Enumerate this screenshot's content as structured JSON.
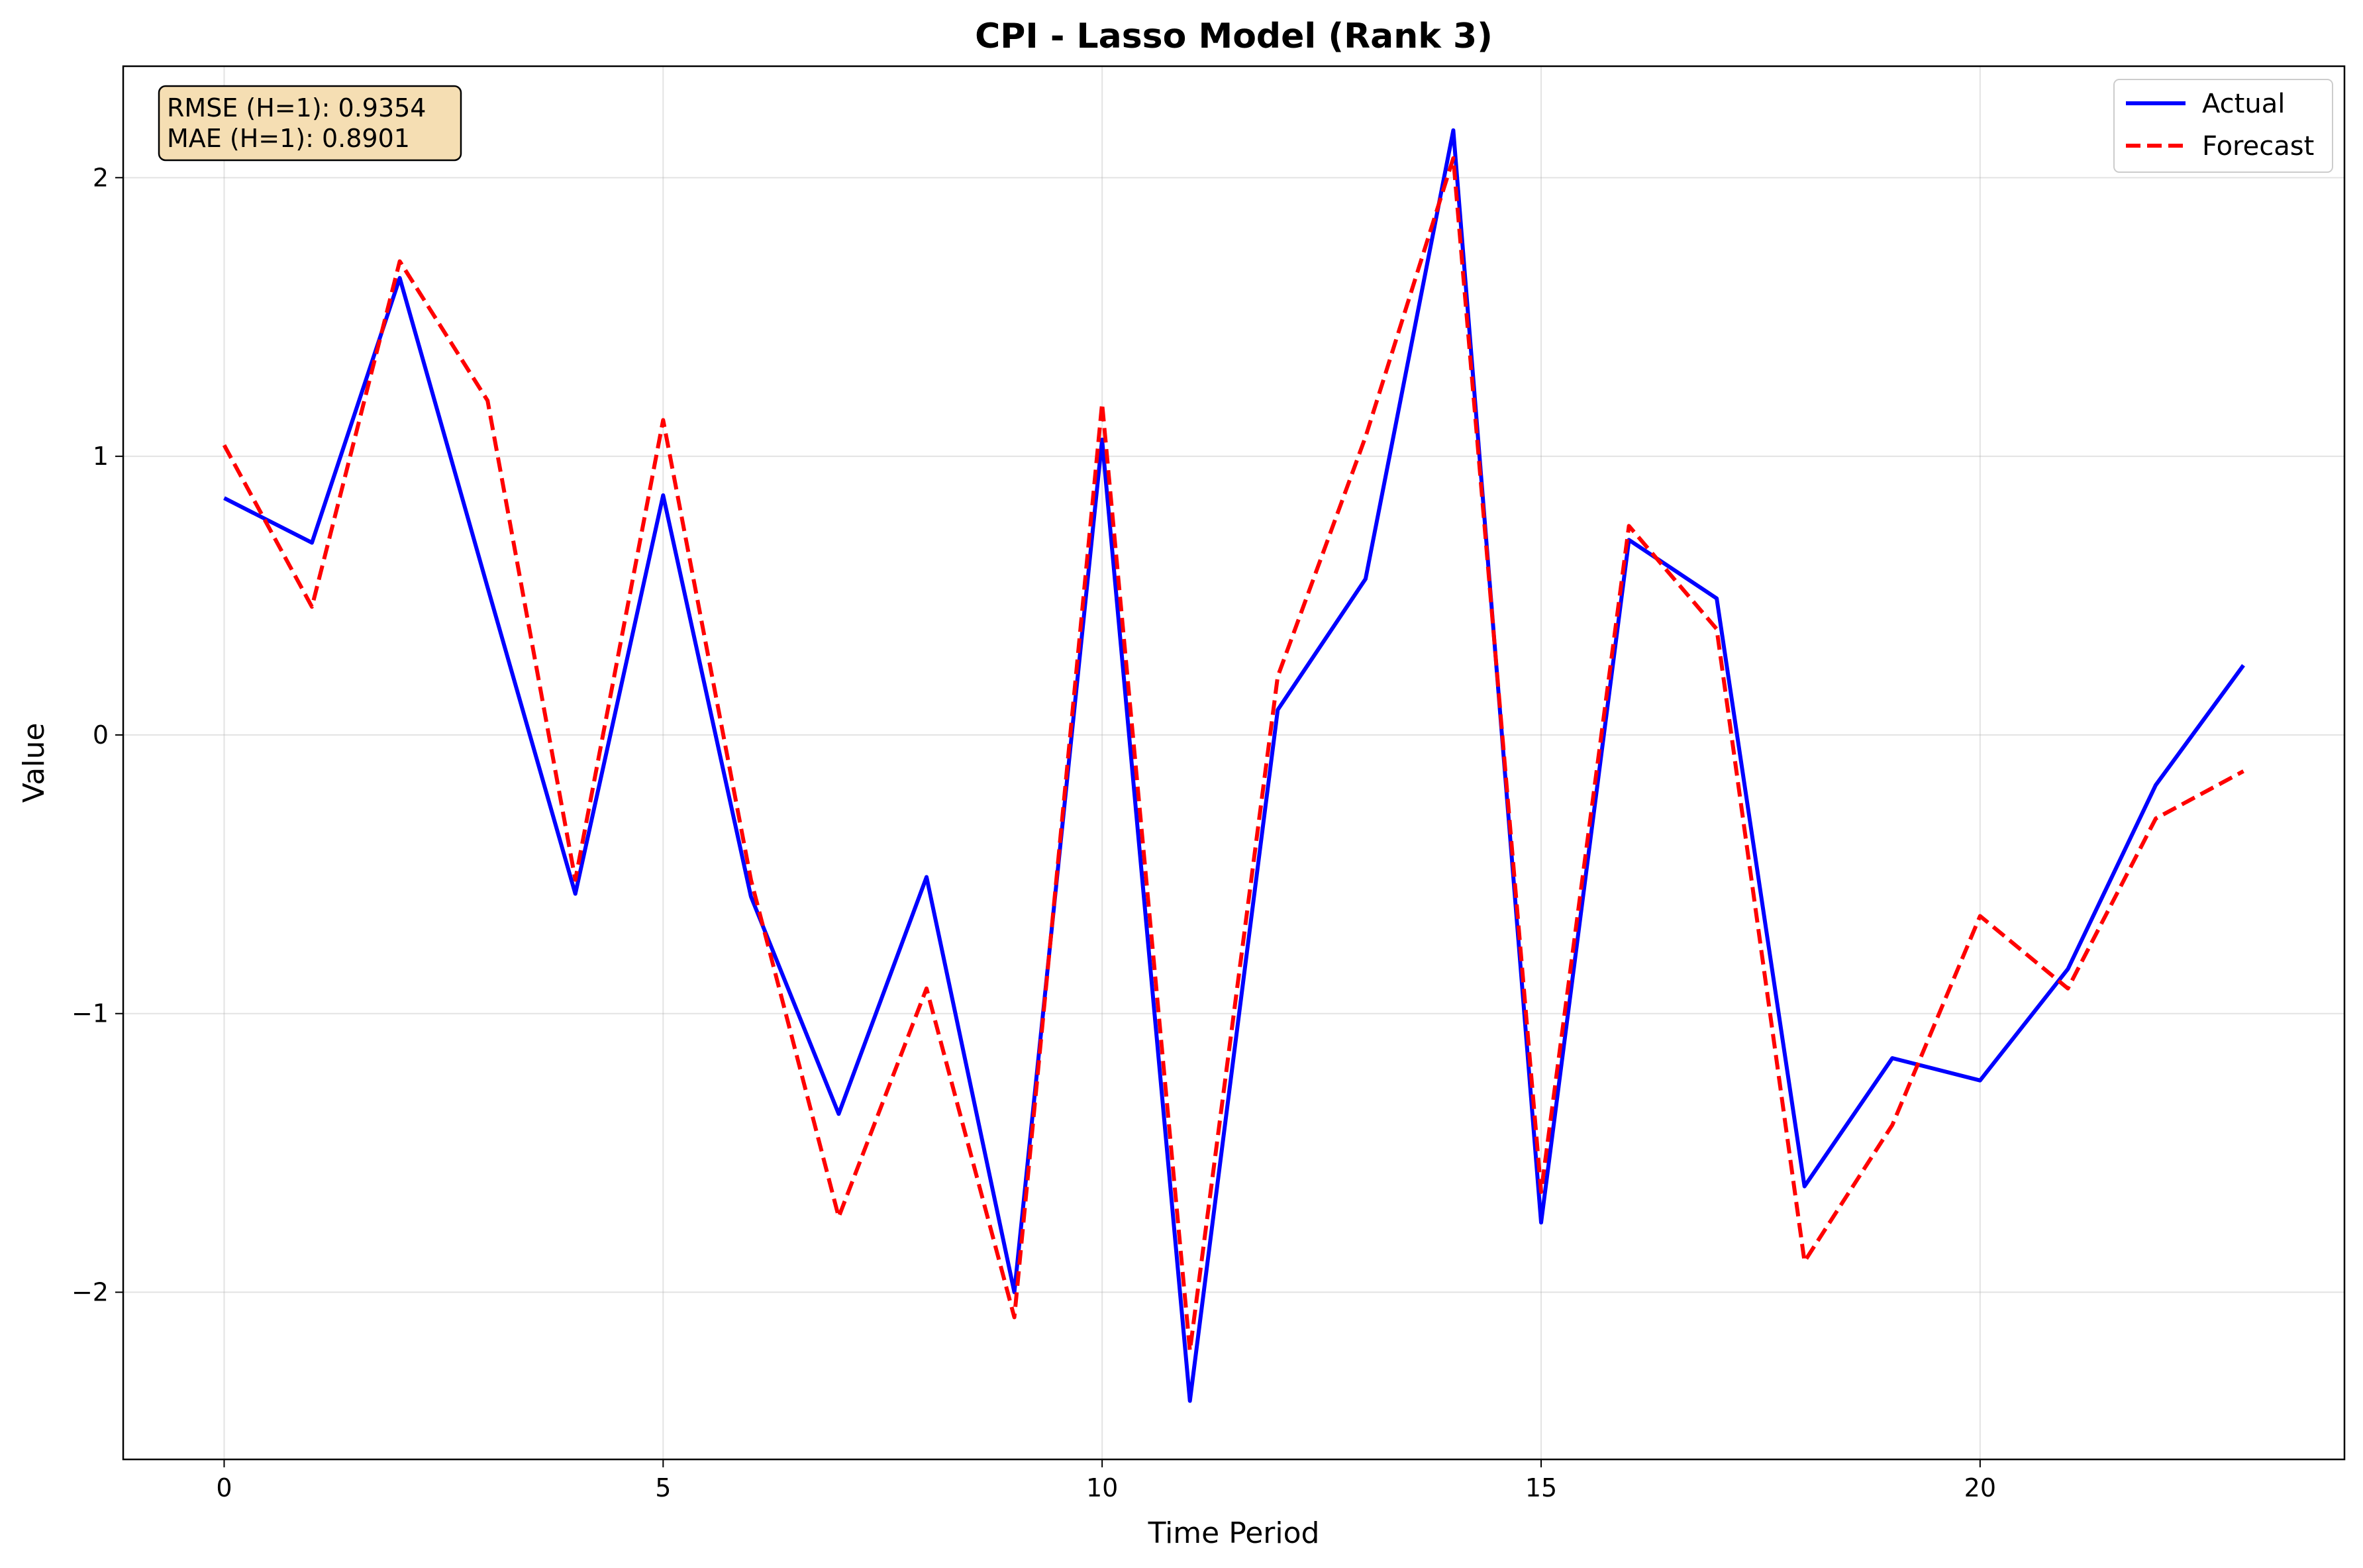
{
  "chart_data": {
    "type": "line",
    "title": "CPI - Lasso Model (Rank 3)",
    "xlabel": "Time Period",
    "ylabel": "Value",
    "xlim": [
      -1.15,
      24.15
    ],
    "ylim": [
      -2.6,
      2.4
    ],
    "x_ticks": [
      0,
      5,
      10,
      15,
      20
    ],
    "y_ticks": [
      -2,
      -1,
      0,
      1,
      2
    ],
    "y_tick_labels": [
      "−2",
      "−1",
      "0",
      "1",
      "2"
    ],
    "grid": true,
    "legend_position": "top-right",
    "x": [
      0,
      1,
      2,
      3,
      4,
      5,
      6,
      7,
      8,
      9,
      10,
      11,
      12,
      13,
      14,
      15,
      16,
      17,
      18,
      19,
      20,
      21,
      22,
      23
    ],
    "series": [
      {
        "name": "Actual",
        "color": "#0000ff",
        "style": "solid",
        "values": [
          0.85,
          0.69,
          1.64,
          0.53,
          -0.57,
          0.86,
          -0.58,
          -1.36,
          -0.51,
          -2.0,
          1.06,
          -2.39,
          0.09,
          0.56,
          2.17,
          -1.75,
          0.7,
          0.49,
          -1.62,
          -1.16,
          -1.24,
          -0.84,
          -0.18,
          0.25
        ]
      },
      {
        "name": "Forecast",
        "color": "#ff0000",
        "style": "dashed",
        "values": [
          1.04,
          0.46,
          1.7,
          1.2,
          -0.52,
          1.13,
          -0.52,
          -1.73,
          -0.91,
          -2.09,
          1.19,
          -2.21,
          0.21,
          1.07,
          2.07,
          -1.64,
          0.75,
          0.38,
          -1.89,
          -1.4,
          -0.65,
          -0.91,
          -0.3,
          -0.13
        ]
      }
    ],
    "annotation": {
      "rmse": "RMSE (H=1): 0.9354",
      "mae": "MAE (H=1): 0.8901",
      "background": "#f5deb3"
    }
  }
}
